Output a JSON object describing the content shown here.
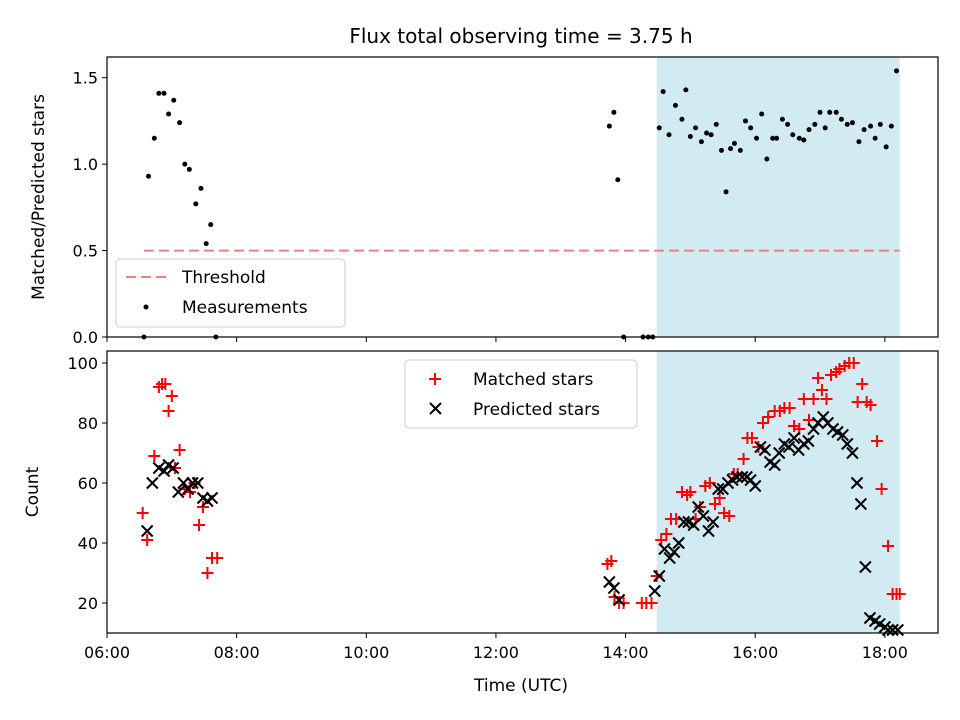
{
  "title": "Flux total observing time = 3.75 h",
  "colors": {
    "threshold": "#f08080",
    "measurement": "#000000",
    "matched": "#ff0000",
    "predicted": "#000000",
    "observing_band": "#add8e6"
  },
  "chart_data": [
    {
      "type": "scatter",
      "ylabel": "Matched/Predicted stars",
      "xlim": [
        6.0,
        18.82
      ],
      "ylim": [
        0,
        1.62
      ],
      "yticks": [
        0.0,
        0.5,
        1.0,
        1.5
      ],
      "ytick_labels": [
        "0.0",
        "0.5",
        "1.0",
        "1.5"
      ],
      "xticks": [
        6,
        8,
        10,
        12,
        14,
        16,
        18
      ],
      "shaded_span": [
        14.48,
        18.23
      ],
      "legend_position": "lower-left",
      "threshold": {
        "name": "Threshold",
        "y": 0.5,
        "x_range": [
          6.57,
          18.23
        ]
      },
      "series": [
        {
          "name": "Measurements",
          "marker": "dot",
          "x": [
            6.57,
            6.64,
            6.73,
            6.8,
            6.88,
            6.95,
            7.03,
            7.12,
            7.2,
            7.27,
            7.37,
            7.45,
            7.53,
            7.6,
            7.68,
            13.75,
            13.82,
            13.88,
            13.97,
            14.27,
            14.35,
            14.42,
            14.52,
            14.58,
            14.67,
            14.77,
            14.87,
            14.93,
            15.0,
            15.08,
            15.17,
            15.25,
            15.32,
            15.4,
            15.48,
            15.55,
            15.62,
            15.68,
            15.77,
            15.85,
            15.93,
            16.02,
            16.1,
            16.18,
            16.27,
            16.33,
            16.42,
            16.5,
            16.58,
            16.68,
            16.75,
            16.83,
            16.92,
            17.0,
            17.08,
            17.15,
            17.25,
            17.33,
            17.42,
            17.5,
            17.6,
            17.68,
            17.78,
            17.85,
            17.93,
            18.02,
            18.1,
            18.18
          ],
          "y": [
            0.0,
            0.93,
            1.15,
            1.41,
            1.41,
            1.29,
            1.37,
            1.24,
            1.0,
            0.97,
            0.77,
            0.86,
            0.54,
            0.65,
            0.0,
            1.22,
            1.3,
            0.91,
            0.0,
            0.0,
            0.0,
            0.0,
            1.21,
            1.42,
            1.17,
            1.34,
            1.26,
            1.43,
            1.16,
            1.21,
            1.13,
            1.18,
            1.17,
            1.23,
            1.08,
            0.84,
            1.09,
            1.12,
            1.08,
            1.25,
            1.21,
            1.15,
            1.29,
            1.03,
            1.15,
            1.15,
            1.26,
            1.23,
            1.17,
            1.15,
            1.14,
            1.2,
            1.23,
            1.3,
            1.21,
            1.3,
            1.3,
            1.26,
            1.23,
            1.24,
            1.13,
            1.2,
            1.22,
            1.15,
            1.23,
            1.1,
            1.22,
            1.54
          ]
        }
      ]
    },
    {
      "type": "scatter",
      "ylabel": "Count",
      "xlabel": "Time (UTC)",
      "xlim": [
        6.0,
        18.82
      ],
      "ylim": [
        10,
        104
      ],
      "yticks": [
        20,
        40,
        60,
        80,
        100
      ],
      "ytick_labels": [
        "20",
        "40",
        "60",
        "80",
        "100"
      ],
      "xticks": [
        6,
        8,
        10,
        12,
        14,
        16,
        18
      ],
      "xtick_labels": [
        "06:00",
        "08:00",
        "10:00",
        "12:00",
        "14:00",
        "16:00",
        "18:00"
      ],
      "shaded_span": [
        14.48,
        18.23
      ],
      "legend_position": "top-center",
      "series": [
        {
          "name": "Matched stars",
          "marker": "plus",
          "x": [
            6.55,
            6.62,
            6.73,
            6.8,
            6.85,
            6.9,
            6.95,
            7.0,
            7.05,
            7.12,
            7.2,
            7.28,
            7.35,
            7.42,
            7.48,
            7.55,
            7.62,
            7.7,
            13.72,
            13.78,
            13.83,
            13.9,
            13.97,
            14.25,
            14.32,
            14.4,
            14.48,
            14.55,
            14.63,
            14.7,
            14.78,
            14.87,
            14.95,
            15.0,
            15.08,
            15.15,
            15.23,
            15.3,
            15.38,
            15.45,
            15.52,
            15.6,
            15.67,
            15.73,
            15.82,
            15.88,
            15.95,
            16.05,
            16.12,
            16.2,
            16.3,
            16.38,
            16.45,
            16.53,
            16.6,
            16.68,
            16.75,
            16.83,
            16.9,
            16.97,
            17.03,
            17.1,
            17.17,
            17.25,
            17.3,
            17.38,
            17.45,
            17.52,
            17.58,
            17.65,
            17.72,
            17.78,
            17.88,
            17.95,
            18.05,
            18.12,
            18.18,
            18.23
          ],
          "y": [
            50,
            41,
            69,
            92,
            93,
            93,
            84,
            89,
            65,
            71,
            58,
            57,
            60,
            46,
            52,
            30,
            35,
            35,
            33,
            34,
            22,
            20,
            20,
            20,
            20,
            20,
            29,
            41,
            43,
            48,
            48,
            57,
            56,
            57,
            48,
            52,
            59,
            60,
            53,
            55,
            50,
            49,
            63,
            63,
            68,
            75,
            75,
            72,
            80,
            82,
            84,
            84,
            85,
            85,
            79,
            78,
            88,
            81,
            88,
            95,
            91,
            88,
            96,
            97,
            98,
            99,
            100,
            100,
            87,
            93,
            87,
            86,
            74,
            58,
            39,
            23,
            23,
            23
          ],
          "legend_label": "Matched stars"
        },
        {
          "name": "Predicted stars",
          "marker": "cross",
          "x": [
            6.62,
            6.7,
            6.8,
            6.88,
            6.95,
            7.02,
            7.1,
            7.18,
            7.25,
            7.32,
            7.4,
            7.48,
            7.55,
            7.62,
            13.75,
            13.82,
            13.9,
            14.45,
            14.52,
            14.6,
            14.68,
            14.75,
            14.82,
            14.9,
            14.97,
            15.05,
            15.12,
            15.2,
            15.28,
            15.35,
            15.43,
            15.5,
            15.58,
            15.65,
            15.72,
            15.8,
            15.87,
            15.93,
            16.0,
            16.08,
            16.15,
            16.23,
            16.3,
            16.37,
            16.45,
            16.52,
            16.6,
            16.67,
            16.75,
            16.82,
            16.9,
            16.97,
            17.05,
            17.12,
            17.2,
            17.27,
            17.35,
            17.42,
            17.5,
            17.57,
            17.63,
            17.7,
            17.77,
            17.85,
            17.92,
            18.0,
            18.05,
            18.12,
            18.2
          ],
          "y": [
            44,
            60,
            65,
            64,
            66,
            65,
            57,
            60,
            58,
            60,
            60,
            55,
            54,
            55,
            27,
            25,
            21,
            24,
            29,
            38,
            35,
            37,
            40,
            47,
            47,
            46,
            52,
            49,
            44,
            47,
            58,
            58,
            60,
            61,
            62,
            62,
            62,
            61,
            59,
            72,
            71,
            67,
            66,
            70,
            73,
            72,
            75,
            71,
            73,
            74,
            78,
            80,
            82,
            80,
            78,
            77,
            76,
            73,
            70,
            60,
            53,
            32,
            15,
            14,
            13,
            12,
            11,
            11,
            11
          ],
          "legend_label": "Predicted stars"
        }
      ]
    }
  ]
}
